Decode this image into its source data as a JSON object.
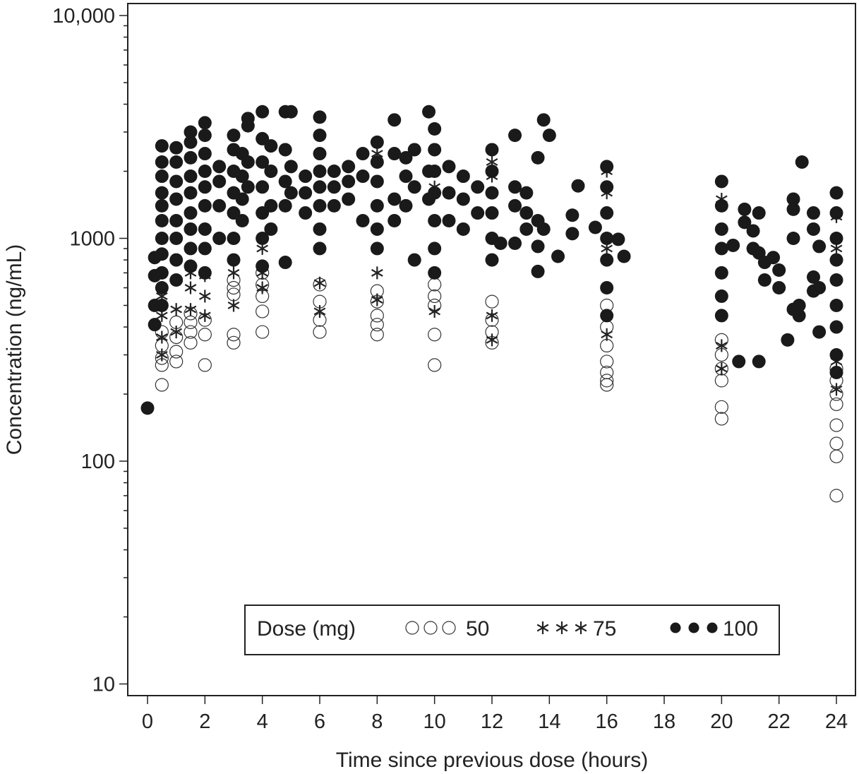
{
  "chart_data": {
    "type": "scatter",
    "title": "",
    "xlabel": "Time since previous dose (hours)",
    "ylabel": "Concentration (ng/mL)",
    "xlim": [
      -0.7,
      24.7
    ],
    "ylim": [
      10,
      10000
    ],
    "yscale": "log",
    "grid": false,
    "x_ticks": [
      "0",
      "2",
      "4",
      "6",
      "8",
      "10",
      "12",
      "14",
      "16",
      "18",
      "20",
      "22",
      "24"
    ],
    "y_ticks": [
      "10",
      "100",
      "1000",
      "10,000"
    ],
    "legend": {
      "title": "Dose (mg)",
      "placement": "bottom-center",
      "entries": [
        "50",
        "75",
        "100"
      ]
    },
    "series": [
      {
        "name": "50",
        "marker": "open-circle",
        "points": [
          [
            0.5,
            220
          ],
          [
            0.5,
            270
          ],
          [
            0.5,
            290
          ],
          [
            0.5,
            330
          ],
          [
            0.5,
            380
          ],
          [
            1,
            280
          ],
          [
            1,
            310
          ],
          [
            1,
            360
          ],
          [
            1,
            420
          ],
          [
            1.5,
            340
          ],
          [
            1.5,
            380
          ],
          [
            1.5,
            420
          ],
          [
            1.5,
            460
          ],
          [
            2,
            270
          ],
          [
            2,
            370
          ],
          [
            2,
            430
          ],
          [
            3,
            340
          ],
          [
            3,
            370
          ],
          [
            3,
            560
          ],
          [
            3,
            600
          ],
          [
            3,
            650
          ],
          [
            4,
            380
          ],
          [
            4,
            470
          ],
          [
            4,
            550
          ],
          [
            4,
            620
          ],
          [
            4,
            700
          ],
          [
            6,
            380
          ],
          [
            6,
            430
          ],
          [
            6,
            520
          ],
          [
            6,
            620
          ],
          [
            8,
            370
          ],
          [
            8,
            410
          ],
          [
            8,
            450
          ],
          [
            8,
            520
          ],
          [
            8,
            580
          ],
          [
            10,
            270
          ],
          [
            10,
            370
          ],
          [
            10,
            500
          ],
          [
            10,
            550
          ],
          [
            10,
            620
          ],
          [
            12,
            340
          ],
          [
            12,
            380
          ],
          [
            12,
            430
          ],
          [
            12,
            520
          ],
          [
            16,
            220
          ],
          [
            16,
            230
          ],
          [
            16,
            250
          ],
          [
            16,
            280
          ],
          [
            16,
            330
          ],
          [
            16,
            400
          ],
          [
            16,
            500
          ],
          [
            20,
            155
          ],
          [
            20,
            175
          ],
          [
            20,
            230
          ],
          [
            20,
            260
          ],
          [
            20,
            300
          ],
          [
            20,
            350
          ],
          [
            24,
            70
          ],
          [
            24,
            105
          ],
          [
            24,
            120
          ],
          [
            24,
            145
          ],
          [
            24,
            180
          ],
          [
            24,
            200
          ],
          [
            24,
            230
          ],
          [
            24,
            260
          ]
        ]
      },
      {
        "name": "75",
        "marker": "asterisk",
        "points": [
          [
            0.5,
            300
          ],
          [
            0.5,
            360
          ],
          [
            0.5,
            450
          ],
          [
            0.5,
            550
          ],
          [
            1,
            380
          ],
          [
            1,
            480
          ],
          [
            1,
            650
          ],
          [
            1.5,
            480
          ],
          [
            1.5,
            600
          ],
          [
            1.5,
            700
          ],
          [
            2,
            450
          ],
          [
            2,
            550
          ],
          [
            2,
            680
          ],
          [
            3,
            500
          ],
          [
            3,
            700
          ],
          [
            3,
            800
          ],
          [
            4,
            600
          ],
          [
            4,
            700
          ],
          [
            4,
            900
          ],
          [
            6,
            470
          ],
          [
            6,
            630
          ],
          [
            6,
            900
          ],
          [
            6,
            2400
          ],
          [
            8,
            530
          ],
          [
            8,
            700
          ],
          [
            8,
            2400
          ],
          [
            10,
            470
          ],
          [
            10,
            700
          ],
          [
            10,
            1700
          ],
          [
            12,
            350
          ],
          [
            12,
            450
          ],
          [
            12,
            1900
          ],
          [
            12,
            2200
          ],
          [
            16,
            370
          ],
          [
            16,
            900
          ],
          [
            16,
            1600
          ],
          [
            16,
            2000
          ],
          [
            20,
            260
          ],
          [
            20,
            330
          ],
          [
            20,
            1100
          ],
          [
            20,
            1500
          ],
          [
            24,
            210
          ],
          [
            24,
            280
          ],
          [
            24,
            900
          ],
          [
            24,
            1250
          ]
        ]
      },
      {
        "name": "100",
        "marker": "filled-circle",
        "points": [
          [
            0,
            173
          ],
          [
            0.25,
            410
          ],
          [
            0.25,
            500
          ],
          [
            0.25,
            680
          ],
          [
            0.25,
            820
          ],
          [
            0.5,
            2600
          ],
          [
            0.5,
            2200
          ],
          [
            0.5,
            1900
          ],
          [
            0.5,
            1600
          ],
          [
            0.5,
            1400
          ],
          [
            0.5,
            1200
          ],
          [
            0.5,
            1000
          ],
          [
            0.5,
            850
          ],
          [
            0.5,
            700
          ],
          [
            0.5,
            600
          ],
          [
            0.5,
            500
          ],
          [
            1,
            2550
          ],
          [
            1,
            2200
          ],
          [
            1,
            1800
          ],
          [
            1,
            1500
          ],
          [
            1,
            1200
          ],
          [
            1,
            1000
          ],
          [
            1,
            800
          ],
          [
            1,
            650
          ],
          [
            1.5,
            3000
          ],
          [
            1.5,
            2700
          ],
          [
            1.5,
            2300
          ],
          [
            1.5,
            1900
          ],
          [
            1.5,
            1600
          ],
          [
            1.5,
            1300
          ],
          [
            1.5,
            1100
          ],
          [
            1.5,
            900
          ],
          [
            1.5,
            750
          ],
          [
            2,
            3300
          ],
          [
            2,
            2900
          ],
          [
            2,
            2400
          ],
          [
            2,
            2000
          ],
          [
            2,
            1700
          ],
          [
            2,
            1400
          ],
          [
            2,
            1100
          ],
          [
            2,
            900
          ],
          [
            2,
            700
          ],
          [
            2.5,
            2100
          ],
          [
            2.5,
            1800
          ],
          [
            2.5,
            1400
          ],
          [
            2.5,
            1000
          ],
          [
            3,
            2900
          ],
          [
            3,
            2500
          ],
          [
            3,
            2000
          ],
          [
            3,
            1600
          ],
          [
            3,
            1300
          ],
          [
            3,
            1000
          ],
          [
            3,
            800
          ],
          [
            3.3,
            2400
          ],
          [
            3.3,
            1900
          ],
          [
            3.3,
            1500
          ],
          [
            3.3,
            1200
          ],
          [
            3.5,
            3450
          ],
          [
            3.5,
            3200
          ],
          [
            3.5,
            2200
          ],
          [
            3.5,
            1700
          ],
          [
            4,
            3700
          ],
          [
            4,
            2800
          ],
          [
            4,
            2200
          ],
          [
            4,
            1700
          ],
          [
            4,
            1300
          ],
          [
            4,
            1000
          ],
          [
            4,
            750
          ],
          [
            4.3,
            2600
          ],
          [
            4.3,
            2000
          ],
          [
            4.3,
            1400
          ],
          [
            4.3,
            1100
          ],
          [
            4.8,
            3700
          ],
          [
            4.8,
            2500
          ],
          [
            4.8,
            1800
          ],
          [
            4.8,
            1400
          ],
          [
            4.8,
            780
          ],
          [
            5,
            3700
          ],
          [
            5,
            2100
          ],
          [
            5,
            1600
          ],
          [
            5.5,
            1900
          ],
          [
            5.5,
            1600
          ],
          [
            5.5,
            1300
          ],
          [
            6,
            3500
          ],
          [
            6,
            2900
          ],
          [
            6,
            2400
          ],
          [
            6,
            2000
          ],
          [
            6,
            1700
          ],
          [
            6,
            1400
          ],
          [
            6,
            1100
          ],
          [
            6,
            900
          ],
          [
            6.5,
            2000
          ],
          [
            6.5,
            1700
          ],
          [
            6.5,
            1400
          ],
          [
            7,
            2100
          ],
          [
            7,
            1800
          ],
          [
            7,
            1500
          ],
          [
            7.5,
            2400
          ],
          [
            7.5,
            1900
          ],
          [
            7.5,
            1200
          ],
          [
            8,
            2700
          ],
          [
            8,
            2200
          ],
          [
            8,
            1800
          ],
          [
            8,
            1400
          ],
          [
            8,
            1100
          ],
          [
            8,
            900
          ],
          [
            8.6,
            3400
          ],
          [
            8.6,
            2400
          ],
          [
            8.6,
            1500
          ],
          [
            8.6,
            1200
          ],
          [
            9,
            2300
          ],
          [
            9,
            1900
          ],
          [
            9,
            1400
          ],
          [
            9.3,
            2500
          ],
          [
            9.3,
            1700
          ],
          [
            9.3,
            800
          ],
          [
            9.8,
            3700
          ],
          [
            9.8,
            2000
          ],
          [
            9.8,
            1500
          ],
          [
            10,
            3100
          ],
          [
            10,
            2500
          ],
          [
            10,
            2000
          ],
          [
            10,
            1600
          ],
          [
            10,
            1200
          ],
          [
            10,
            900
          ],
          [
            10,
            700
          ],
          [
            10.5,
            2100
          ],
          [
            10.5,
            1600
          ],
          [
            10.5,
            1200
          ],
          [
            11,
            1900
          ],
          [
            11,
            1500
          ],
          [
            11,
            1100
          ],
          [
            11.5,
            1700
          ],
          [
            11.5,
            1300
          ],
          [
            12,
            2500
          ],
          [
            12,
            2000
          ],
          [
            12,
            1600
          ],
          [
            12,
            1300
          ],
          [
            12,
            1000
          ],
          [
            12,
            800
          ],
          [
            12.3,
            950
          ],
          [
            12.8,
            2900
          ],
          [
            12.8,
            1700
          ],
          [
            12.8,
            1400
          ],
          [
            12.8,
            950
          ],
          [
            13.2,
            1600
          ],
          [
            13.2,
            1300
          ],
          [
            13.2,
            1100
          ],
          [
            13.6,
            2300
          ],
          [
            13.6,
            1200
          ],
          [
            13.6,
            920
          ],
          [
            13.6,
            710
          ],
          [
            13.8,
            3400
          ],
          [
            13.8,
            1100
          ],
          [
            14,
            2900
          ],
          [
            14.3,
            830
          ],
          [
            14.8,
            1270
          ],
          [
            14.8,
            1050
          ],
          [
            15,
            1720
          ],
          [
            15.6,
            1120
          ],
          [
            16,
            2100
          ],
          [
            16,
            1700
          ],
          [
            16,
            1300
          ],
          [
            16,
            1000
          ],
          [
            16,
            800
          ],
          [
            16,
            600
          ],
          [
            16,
            450
          ],
          [
            16.4,
            990
          ],
          [
            16.6,
            830
          ],
          [
            20,
            1800
          ],
          [
            20,
            1400
          ],
          [
            20,
            1100
          ],
          [
            20,
            900
          ],
          [
            20,
            700
          ],
          [
            20,
            550
          ],
          [
            20,
            450
          ],
          [
            20.4,
            930
          ],
          [
            20.6,
            280
          ],
          [
            20.8,
            1350
          ],
          [
            20.8,
            1180
          ],
          [
            21.1,
            1080
          ],
          [
            21.1,
            900
          ],
          [
            21.3,
            280
          ],
          [
            21.3,
            1300
          ],
          [
            21.3,
            860
          ],
          [
            21.5,
            650
          ],
          [
            21.5,
            780
          ],
          [
            21.8,
            820
          ],
          [
            22,
            720
          ],
          [
            22,
            600
          ],
          [
            22.3,
            350
          ],
          [
            22.5,
            1500
          ],
          [
            22.5,
            1350
          ],
          [
            22.5,
            1000
          ],
          [
            22.5,
            480
          ],
          [
            22.7,
            450
          ],
          [
            22.7,
            500
          ],
          [
            22.8,
            2200
          ],
          [
            23.2,
            1300
          ],
          [
            23.2,
            1100
          ],
          [
            23.2,
            580
          ],
          [
            23.2,
            670
          ],
          [
            23.4,
            920
          ],
          [
            23.4,
            380
          ],
          [
            23.4,
            600
          ],
          [
            24,
            1600
          ],
          [
            24,
            1300
          ],
          [
            24,
            1000
          ],
          [
            24,
            800
          ],
          [
            24,
            650
          ],
          [
            24,
            500
          ],
          [
            24,
            400
          ],
          [
            24,
            300
          ],
          [
            24,
            250
          ]
        ]
      }
    ]
  }
}
